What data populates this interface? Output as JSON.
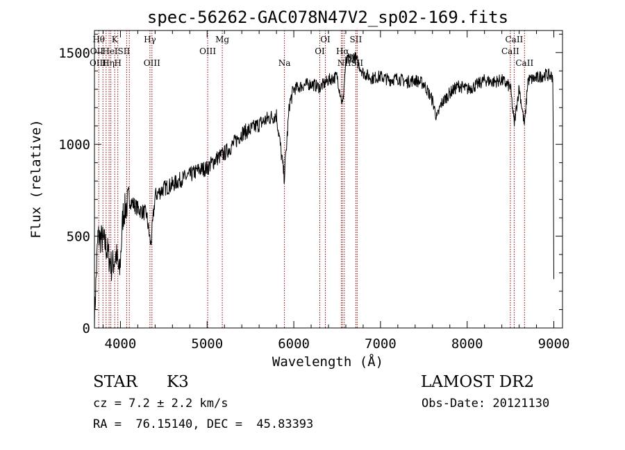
{
  "chart_data": {
    "type": "line",
    "title": "spec-56262-GAC078N47V2_sp02-169.fits",
    "xlabel": "Wavelength (Å)",
    "ylabel": "Flux (relative)",
    "xlim": [
      3700,
      9100
    ],
    "ylim": [
      0,
      1620
    ],
    "xticks": [
      4000,
      5000,
      6000,
      7000,
      8000,
      9000
    ],
    "yticks": [
      0,
      500,
      1000,
      1500
    ],
    "x_minor_step": 200,
    "y_minor_step": 100,
    "grid": false,
    "line_color": "#000000",
    "marker_color": "#8b0000",
    "series": [
      {
        "x": [
          3700,
          3740,
          3790,
          3830,
          3870,
          3900,
          3950,
          3990,
          4030,
          4100,
          4200,
          4300,
          4350,
          4400,
          4500,
          4600,
          4700,
          4800,
          4900,
          5000,
          5100,
          5200,
          5300,
          5400,
          5500,
          5600,
          5700,
          5800,
          5890,
          5950,
          6000,
          6100,
          6200,
          6300,
          6400,
          6500,
          6563,
          6600,
          6700,
          6800,
          6900,
          7000,
          7100,
          7200,
          7300,
          7400,
          7500,
          7600,
          7650,
          7700,
          7800,
          7900,
          8000,
          8100,
          8200,
          8300,
          8400,
          8500,
          8542,
          8600,
          8662,
          8700,
          8800,
          8900,
          8990,
          9000
        ],
        "y": [
          50,
          500,
          480,
          450,
          380,
          330,
          400,
          290,
          620,
          700,
          650,
          620,
          450,
          720,
          760,
          780,
          810,
          830,
          860,
          870,
          920,
          950,
          1000,
          1060,
          1080,
          1110,
          1140,
          1160,
          820,
          1220,
          1300,
          1320,
          1330,
          1310,
          1350,
          1370,
          1210,
          1450,
          1480,
          1390,
          1360,
          1370,
          1350,
          1360,
          1340,
          1350,
          1330,
          1240,
          1140,
          1220,
          1280,
          1320,
          1300,
          1320,
          1350,
          1340,
          1350,
          1310,
          1110,
          1310,
          1100,
          1350,
          1360,
          1380,
          1370,
          260
        ]
      }
    ],
    "lines": [
      {
        "x": 3750,
        "top": "Hθ",
        "bottom": ""
      },
      {
        "x": 3798,
        "top": "",
        "bottom": ""
      },
      {
        "x": 3835,
        "top": "",
        "bottom": ""
      },
      {
        "x": 3869,
        "top": "",
        "bottom": ""
      },
      {
        "x": 3889,
        "top": "",
        "bottom": ""
      },
      {
        "x": 3934,
        "top": "K",
        "bottom": ""
      },
      {
        "x": 3970,
        "top": "",
        "bottom": ""
      },
      {
        "x": 4072,
        "top": "",
        "bottom": ""
      },
      {
        "x": 4102,
        "top": "",
        "bottom": ""
      },
      {
        "x": 4340,
        "top": "Hγ",
        "bottom": ""
      },
      {
        "x": 4363,
        "top": "",
        "bottom": ""
      },
      {
        "x": 5007,
        "top": "",
        "bottom": ""
      },
      {
        "x": 5175,
        "top": "Mg",
        "bottom": ""
      },
      {
        "x": 5892,
        "top": "",
        "bottom": ""
      },
      {
        "x": 6300,
        "top": "",
        "bottom": ""
      },
      {
        "x": 6364,
        "top": "OI",
        "bottom": ""
      },
      {
        "x": 6548,
        "top": "",
        "bottom": ""
      },
      {
        "x": 6563,
        "top": "",
        "bottom": ""
      },
      {
        "x": 6583,
        "top": "",
        "bottom": ""
      },
      {
        "x": 6716,
        "top": "SII",
        "bottom": ""
      },
      {
        "x": 6731,
        "top": "",
        "bottom": ""
      },
      {
        "x": 8498,
        "top": "",
        "bottom": ""
      },
      {
        "x": 8542,
        "top": "CaII",
        "bottom": ""
      },
      {
        "x": 8662,
        "top": "",
        "bottom": ""
      }
    ],
    "line_labels": [
      {
        "text": "OII",
        "x": 3727,
        "row": 2
      },
      {
        "text": "OIII",
        "x": 3740,
        "row": 3
      },
      {
        "text": "HeI",
        "x": 3880,
        "row": 2
      },
      {
        "text": "Hη",
        "x": 3860,
        "row": 3
      },
      {
        "text": "SII",
        "x": 4040,
        "row": 2
      },
      {
        "text": "H",
        "x": 3970,
        "row": 3
      },
      {
        "text": "OIII",
        "x": 4363,
        "row": 3
      },
      {
        "text": "OIII",
        "x": 5007,
        "row": 2
      },
      {
        "text": "Na",
        "x": 5892,
        "row": 3
      },
      {
        "text": "OI",
        "x": 6300,
        "row": 2
      },
      {
        "text": "Hα",
        "x": 6563,
        "row": 2
      },
      {
        "text": "NII",
        "x": 6583,
        "row": 3
      },
      {
        "text": "SII",
        "x": 6731,
        "row": 3
      },
      {
        "text": "CaII",
        "x": 8498,
        "row": 2
      },
      {
        "text": "CaII",
        "x": 8662,
        "row": 3
      }
    ]
  },
  "info": {
    "class_label": "STAR",
    "subclass": "K3",
    "survey": "LAMOST DR2",
    "cz": "cz = 7.2 ± 2.2 km/s",
    "obs_date": "Obs-Date: 20121130",
    "radec": "RA =  76.15140, DEC =  45.83393"
  }
}
